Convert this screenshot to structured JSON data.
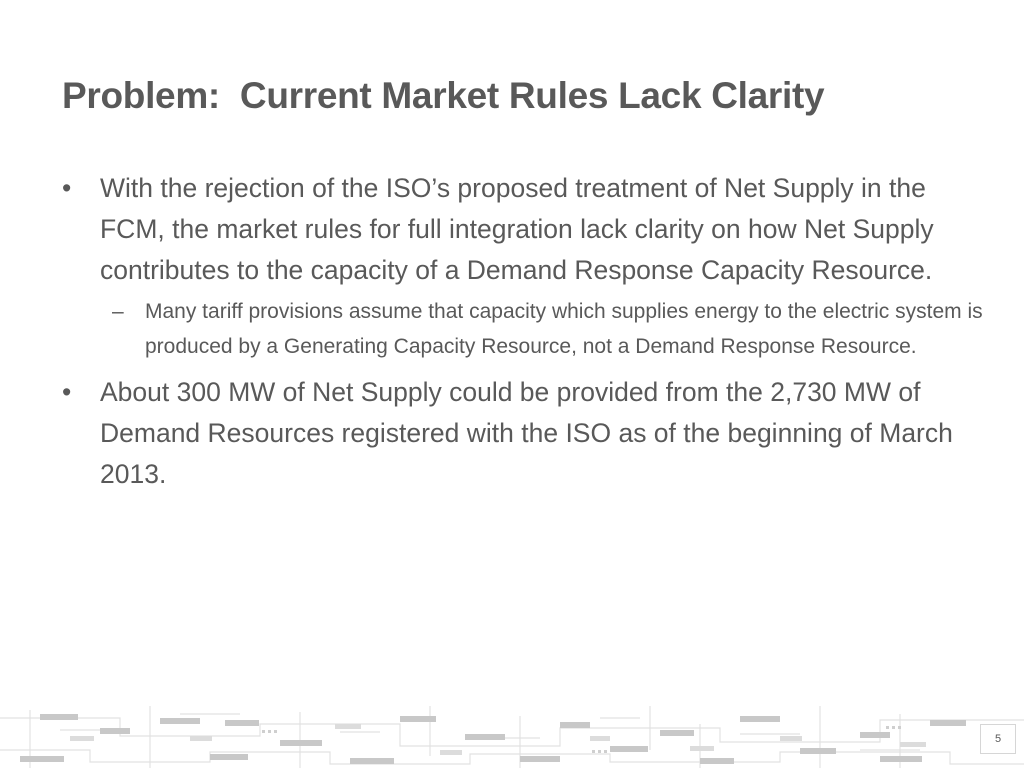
{
  "slide": {
    "title": "Problem:  Current Market Rules Lack Clarity",
    "bullets": [
      {
        "marker": "•",
        "text": "With the rejection of the ISO’s proposed treatment of Net Supply in the FCM, the market rules for full integration lack clarity on how Net Supply contributes to the capacity of a Demand Response Capacity Resource.",
        "sub": [
          {
            "marker": "–",
            "text": "Many tariff provisions assume that capacity which supplies energy to the electric system is produced by a Generating Capacity Resource, not a Demand Response Resource."
          }
        ]
      },
      {
        "marker": "•",
        "text": "About 300 MW of Net Supply could be provided from the 2,730 MW of Demand Resources registered with the ISO as of the beginning of March 2013."
      }
    ],
    "page_number": "5"
  },
  "colors": {
    "text": "#595959",
    "circuit_dark": "#bfbfbf",
    "circuit_light": "#e2e2e2"
  }
}
